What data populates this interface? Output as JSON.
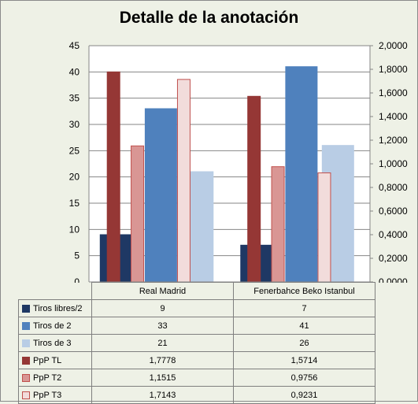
{
  "chart_data": {
    "type": "bar",
    "title": "Detalle de la anotación",
    "categories": [
      "Real Madrid",
      "Fenerbahce Beko Istanbul"
    ],
    "y_left": {
      "ylim": [
        0,
        45
      ],
      "ticks": [
        "0",
        "5",
        "10",
        "15",
        "20",
        "25",
        "30",
        "35",
        "40",
        "45"
      ]
    },
    "y_right": {
      "ylim": [
        0,
        2.0
      ],
      "ticks": [
        "0,0000",
        "0,2000",
        "0,4000",
        "0,6000",
        "0,8000",
        "1,0000",
        "1,2000",
        "1,4000",
        "1,6000",
        "1,8000",
        "2,0000"
      ]
    },
    "series": [
      {
        "name": "Tiros libres/2",
        "axis": "left",
        "values": [
          9,
          7
        ],
        "labels": [
          "9",
          "7"
        ],
        "color": "#1f3864",
        "border": "#1f3864"
      },
      {
        "name": "Tiros de 2",
        "axis": "left",
        "values": [
          33,
          41
        ],
        "labels": [
          "33",
          "41"
        ],
        "color": "#4f81bd",
        "border": "#4f81bd"
      },
      {
        "name": "Tiros de 3",
        "axis": "left",
        "values": [
          21,
          26
        ],
        "labels": [
          "21",
          "26"
        ],
        "color": "#b9cde5",
        "border": "#b9cde5"
      },
      {
        "name": "PpP TL",
        "axis": "right",
        "values": [
          1.7778,
          1.5714
        ],
        "labels": [
          "1,7778",
          "1,5714"
        ],
        "color": "#953735",
        "border": "#953735"
      },
      {
        "name": "PpP T2",
        "axis": "right",
        "values": [
          1.1515,
          0.9756
        ],
        "labels": [
          "1,1515",
          "0,9756"
        ],
        "color": "#d99694",
        "border": "#c0504d"
      },
      {
        "name": "PpP T3",
        "axis": "right",
        "values": [
          1.7143,
          0.9231
        ],
        "labels": [
          "1,7143",
          "0,9231"
        ],
        "color": "#f2dcdb",
        "border": "#c0504d"
      }
    ],
    "legend": "data-table-below"
  }
}
